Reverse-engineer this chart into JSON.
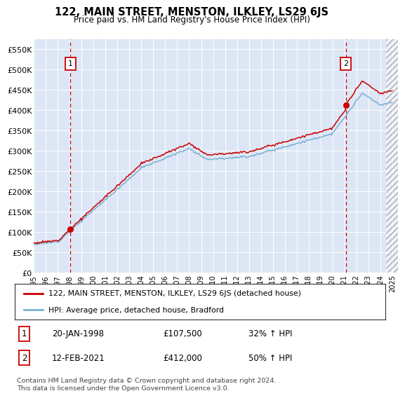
{
  "title": "122, MAIN STREET, MENSTON, ILKLEY, LS29 6JS",
  "subtitle": "Price paid vs. HM Land Registry's House Price Index (HPI)",
  "legend_line1": "122, MAIN STREET, MENSTON, ILKLEY, LS29 6JS (detached house)",
  "legend_line2": "HPI: Average price, detached house, Bradford",
  "annotation1_date": "20-JAN-1998",
  "annotation1_price": "£107,500",
  "annotation1_hpi": "32% ↑ HPI",
  "annotation2_date": "12-FEB-2021",
  "annotation2_price": "£412,000",
  "annotation2_hpi": "50% ↑ HPI",
  "footnote": "Contains HM Land Registry data © Crown copyright and database right 2024.\nThis data is licensed under the Open Government Licence v3.0.",
  "sale1_year": 1998.05,
  "sale1_price": 107500,
  "sale2_year": 2021.12,
  "sale2_price": 412000,
  "hpi_color": "#7ab0d4",
  "price_color": "#cc0000",
  "bg_color": "#dce6f5",
  "plot_bg": "#ffffff",
  "ylim": [
    0,
    575000
  ],
  "xlim_start": 1995,
  "xlim_end": 2025.5,
  "yticks": [
    0,
    50000,
    100000,
    150000,
    200000,
    250000,
    300000,
    350000,
    400000,
    450000,
    500000,
    550000
  ],
  "ytick_labels": [
    "£0",
    "£50K",
    "£100K",
    "£150K",
    "£200K",
    "£250K",
    "£300K",
    "£350K",
    "£400K",
    "£450K",
    "£500K",
    "£550K"
  ],
  "xticks": [
    1995,
    1996,
    1997,
    1998,
    1999,
    2000,
    2001,
    2002,
    2003,
    2004,
    2005,
    2006,
    2007,
    2008,
    2009,
    2010,
    2011,
    2012,
    2013,
    2014,
    2015,
    2016,
    2017,
    2018,
    2019,
    2020,
    2021,
    2022,
    2023,
    2024,
    2025
  ],
  "xtick_labels": [
    "1995",
    "1996",
    "1997",
    "1998",
    "1999",
    "2000",
    "2001",
    "2002",
    "2003",
    "2004",
    "2005",
    "2006",
    "2007",
    "2008",
    "2009",
    "2010",
    "2011",
    "2012",
    "2013",
    "2014",
    "2015",
    "2016",
    "2017",
    "2018",
    "2019",
    "2020",
    "2021",
    "2022",
    "2023",
    "2024",
    "2025"
  ]
}
